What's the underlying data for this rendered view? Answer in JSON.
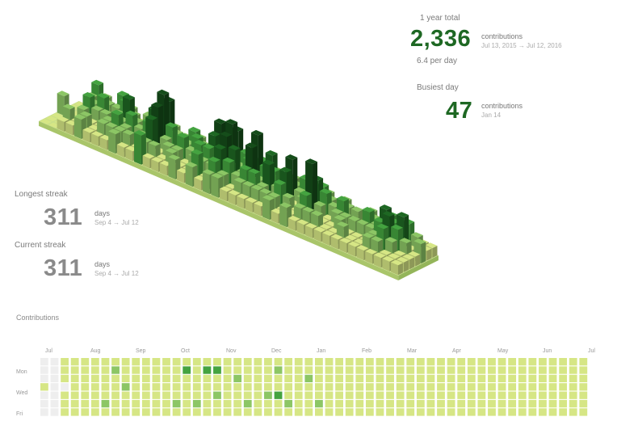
{
  "colors": {
    "level0": "#eeeeee",
    "level1": "#d6e685",
    "level2": "#8cc665",
    "level3": "#44a340",
    "level4": "#1e6823",
    "accent": "#1e6823"
  },
  "total": {
    "label": "1 year total",
    "value": "2,336",
    "unit": "contributions",
    "range": "Jul 13, 2015 → Jul 12, 2016",
    "subline": "6.4 per day"
  },
  "busiest": {
    "label": "Busiest day",
    "value": "47",
    "unit": "contributions",
    "date": "Jan 14"
  },
  "longest": {
    "label": "Longest streak",
    "value": "311",
    "unit": "days",
    "range": "Sep 4 → Jul 12"
  },
  "current": {
    "label": "Current streak",
    "value": "311",
    "unit": "days",
    "range": "Sep 4 → Jul 12"
  },
  "calendar": {
    "title": "Contributions",
    "months": [
      "Jul",
      "Aug",
      "Sep",
      "Oct",
      "Nov",
      "Dec",
      "Jan",
      "Feb",
      "Mar",
      "Apr",
      "May",
      "Jun",
      "Jul"
    ],
    "weekday_labels": [
      "Mon",
      "Wed",
      "Fri"
    ],
    "levels": [
      [
        0,
        0,
        0,
        1,
        0,
        0,
        0
      ],
      [
        0,
        0,
        0,
        0,
        0,
        0,
        0
      ],
      [
        1,
        1,
        1,
        0,
        1,
        1,
        1
      ],
      [
        1,
        1,
        1,
        1,
        1,
        1,
        1
      ],
      [
        1,
        1,
        1,
        1,
        1,
        1,
        1
      ],
      [
        1,
        1,
        1,
        1,
        1,
        1,
        1
      ],
      [
        1,
        1,
        1,
        1,
        1,
        2,
        1
      ],
      [
        1,
        2,
        1,
        1,
        1,
        1,
        1
      ],
      [
        1,
        1,
        1,
        2,
        1,
        1,
        1
      ],
      [
        1,
        1,
        1,
        1,
        1,
        1,
        1
      ],
      [
        1,
        1,
        1,
        1,
        1,
        1,
        1
      ],
      [
        1,
        1,
        1,
        1,
        1,
        1,
        1
      ],
      [
        1,
        1,
        1,
        1,
        1,
        1,
        1
      ],
      [
        1,
        1,
        1,
        1,
        1,
        2,
        1
      ],
      [
        1,
        3,
        1,
        1,
        1,
        1,
        1
      ],
      [
        1,
        1,
        1,
        1,
        1,
        2,
        1
      ],
      [
        1,
        3,
        1,
        1,
        1,
        1,
        1
      ],
      [
        1,
        3,
        1,
        1,
        2,
        1,
        1
      ],
      [
        1,
        1,
        1,
        1,
        1,
        1,
        1
      ],
      [
        1,
        1,
        2,
        1,
        1,
        1,
        1
      ],
      [
        1,
        1,
        1,
        1,
        1,
        2,
        1
      ],
      [
        1,
        1,
        1,
        1,
        1,
        1,
        1
      ],
      [
        1,
        1,
        1,
        1,
        2,
        1,
        1
      ],
      [
        1,
        2,
        1,
        1,
        3,
        1,
        1
      ],
      [
        1,
        1,
        1,
        1,
        1,
        2,
        1
      ],
      [
        1,
        1,
        1,
        1,
        1,
        1,
        1
      ],
      [
        1,
        1,
        2,
        1,
        1,
        1,
        1
      ],
      [
        1,
        1,
        1,
        1,
        1,
        2,
        1
      ],
      [
        1,
        1,
        1,
        1,
        1,
        1,
        1
      ],
      [
        1,
        1,
        1,
        1,
        1,
        1,
        1
      ],
      [
        1,
        1,
        1,
        1,
        1,
        1,
        1
      ],
      [
        1,
        1,
        1,
        1,
        1,
        1,
        1
      ],
      [
        1,
        1,
        1,
        1,
        1,
        1,
        1
      ],
      [
        1,
        1,
        1,
        1,
        1,
        1,
        1
      ],
      [
        1,
        1,
        1,
        1,
        1,
        1,
        1
      ],
      [
        1,
        1,
        1,
        1,
        1,
        1,
        1
      ],
      [
        1,
        1,
        1,
        1,
        1,
        1,
        1
      ],
      [
        1,
        1,
        1,
        1,
        1,
        1,
        1
      ],
      [
        1,
        1,
        1,
        1,
        1,
        1,
        1
      ],
      [
        1,
        1,
        1,
        1,
        1,
        1,
        1
      ],
      [
        1,
        1,
        1,
        1,
        1,
        1,
        1
      ],
      [
        1,
        1,
        1,
        1,
        1,
        1,
        1
      ],
      [
        1,
        1,
        1,
        1,
        1,
        1,
        1
      ],
      [
        1,
        1,
        1,
        1,
        1,
        1,
        1
      ],
      [
        1,
        1,
        1,
        1,
        1,
        1,
        1
      ],
      [
        1,
        1,
        1,
        1,
        1,
        1,
        1
      ],
      [
        1,
        1,
        1,
        1,
        1,
        1,
        1
      ],
      [
        1,
        1,
        1,
        1,
        1,
        1,
        1
      ],
      [
        1,
        1,
        1,
        1,
        1,
        1,
        1
      ],
      [
        1,
        1,
        1,
        1,
        1,
        1,
        1
      ],
      [
        1,
        1,
        1,
        1,
        1,
        1,
        1
      ],
      [
        1,
        1,
        1,
        1,
        1,
        1,
        1
      ],
      [
        1,
        1,
        1,
        1,
        1,
        1,
        1
      ],
      [
        1,
        1,
        1,
        1,
        1,
        1,
        1
      ]
    ]
  },
  "iso": {
    "heights": [
      0,
      0,
      0,
      2,
      0,
      0,
      0,
      0,
      0,
      0,
      0,
      0,
      0,
      0,
      3,
      2,
      1,
      0,
      1,
      2,
      1,
      2,
      1,
      2,
      3,
      2,
      1,
      1,
      1,
      2,
      3,
      2,
      1,
      2,
      2,
      3,
      2,
      1,
      2,
      1,
      1,
      1,
      2,
      3,
      2,
      1,
      2,
      2,
      1,
      1,
      2,
      4,
      2,
      3,
      2,
      1,
      2,
      1,
      2,
      3,
      2,
      2,
      2,
      1,
      2,
      1,
      2,
      1,
      2,
      1,
      2,
      3,
      4,
      3,
      2,
      1,
      1,
      2,
      5,
      6,
      5,
      4,
      2,
      3,
      1,
      2,
      3,
      2,
      1,
      2,
      1,
      1,
      2,
      1,
      1,
      2,
      1,
      1,
      2,
      3,
      2,
      3,
      2,
      2,
      1,
      1,
      2,
      3,
      2,
      1,
      1,
      2,
      2,
      1,
      2,
      3,
      2,
      1,
      1,
      3,
      5,
      4,
      3,
      2,
      3,
      2,
      2,
      1,
      3,
      2,
      2,
      1,
      1,
      1,
      5,
      6,
      5,
      4,
      3,
      2,
      2,
      3,
      2,
      4,
      3,
      2,
      2,
      1,
      2,
      3,
      2,
      2,
      1,
      1,
      2,
      3,
      6,
      5,
      3,
      2,
      1,
      2,
      4,
      3,
      2,
      3,
      2,
      1,
      1,
      2,
      3,
      4,
      2,
      2,
      1,
      2,
      1,
      2,
      2,
      1,
      2,
      1,
      1,
      2,
      5,
      4,
      3,
      2,
      2,
      2,
      3,
      2,
      1,
      2,
      1,
      1,
      1,
      2,
      1,
      2,
      1,
      1,
      2,
      2,
      3,
      4,
      6,
      3,
      2,
      1,
      1,
      2,
      3,
      2,
      1,
      2,
      1,
      2,
      1,
      2,
      1,
      1,
      2,
      1,
      1,
      2,
      3,
      2,
      1,
      1,
      1,
      1,
      2,
      1,
      2,
      2,
      1,
      1,
      2,
      1,
      1,
      2,
      1,
      2,
      1,
      1,
      2,
      3,
      2,
      1,
      1,
      1,
      1,
      2,
      2,
      2,
      1,
      1,
      1,
      2,
      3,
      4,
      3,
      2,
      2,
      1,
      1,
      2,
      3,
      4,
      3,
      2,
      1,
      1,
      3,
      4,
      3,
      2,
      1,
      1,
      1,
      2,
      1,
      2,
      1,
      1,
      1,
      1,
      1,
      2,
      1,
      1,
      1,
      1
    ]
  }
}
